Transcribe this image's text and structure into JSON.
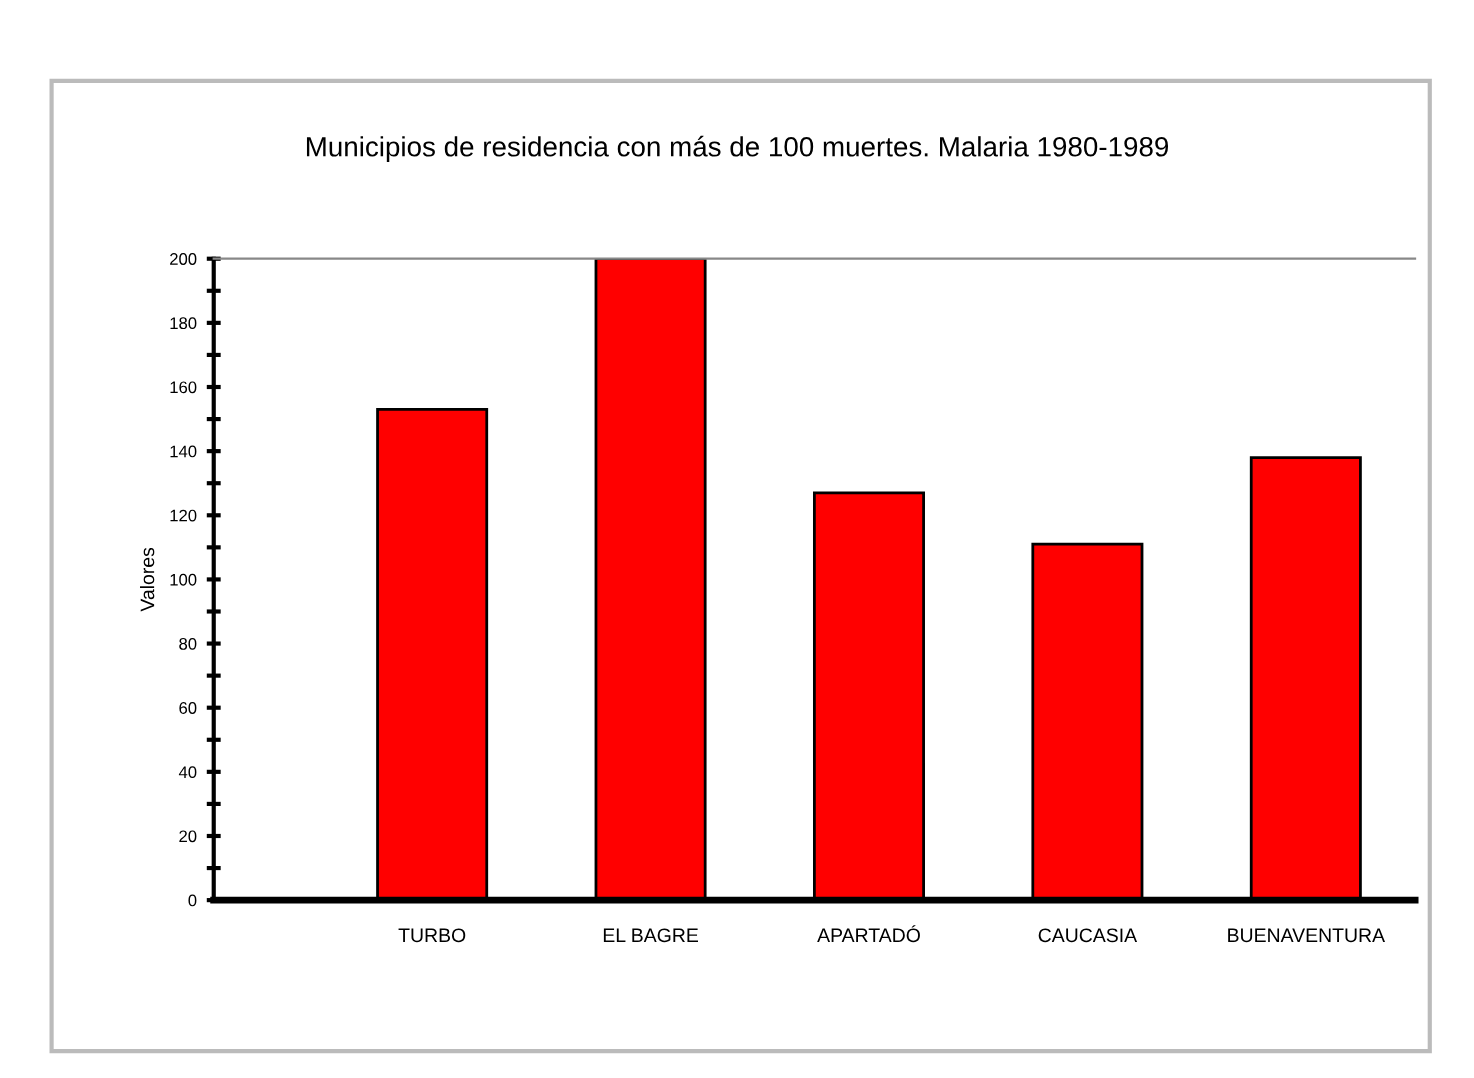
{
  "chart_data": {
    "type": "bar",
    "title": "Municipios de residencia con más de 100 muertes. Malaria 1980-1989",
    "ylabel": "Valores",
    "categories": [
      "TURBO",
      "EL BAGRE",
      "APARTADÓ",
      "CAUCASIA",
      "BUENAVENTURA"
    ],
    "values": [
      153,
      200,
      127,
      111,
      138
    ],
    "color": "#ff0000",
    "ylim": [
      0,
      200
    ],
    "yticks": [
      0,
      20,
      40,
      60,
      80,
      100,
      120,
      140,
      160,
      180,
      200
    ],
    "grid": false,
    "legend": false
  }
}
